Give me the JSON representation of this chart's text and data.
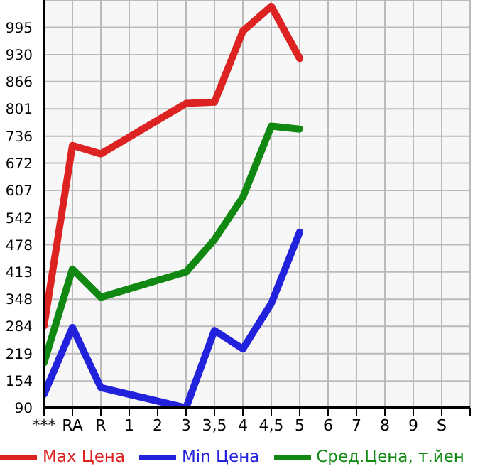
{
  "chart_data": {
    "type": "line",
    "categories": [
      "***",
      "RA",
      "R",
      "1",
      "2",
      "3",
      "3,5",
      "4",
      "4,5",
      "5",
      "6",
      "7",
      "8",
      "9",
      "S",
      null
    ],
    "series": [
      {
        "name": "Max Цена",
        "color": "#dd2222",
        "values": [
          285,
          714,
          694,
          null,
          null,
          814,
          817,
          986,
          1045,
          921,
          null,
          null,
          null,
          null,
          null,
          null
        ]
      },
      {
        "name": "Min Цена",
        "color": "#2222dd",
        "values": [
          122,
          281,
          138,
          null,
          null,
          90,
          274,
          230,
          338,
          508,
          null,
          null,
          null,
          null,
          null,
          null
        ]
      },
      {
        "name": "Сред.Цена, т.йен",
        "color": "#118811",
        "values": [
          197,
          420,
          353,
          null,
          null,
          413,
          490,
          591,
          760,
          753,
          null,
          null,
          null,
          null,
          null,
          null
        ]
      }
    ],
    "ylim": [
      90,
      1060
    ],
    "yticks": [
      90,
      154,
      219,
      284,
      348,
      413,
      478,
      542,
      607,
      672,
      736,
      801,
      866,
      930,
      995
    ],
    "grid": true,
    "legend": "bottom",
    "marker": "none",
    "line_style": "solid"
  }
}
